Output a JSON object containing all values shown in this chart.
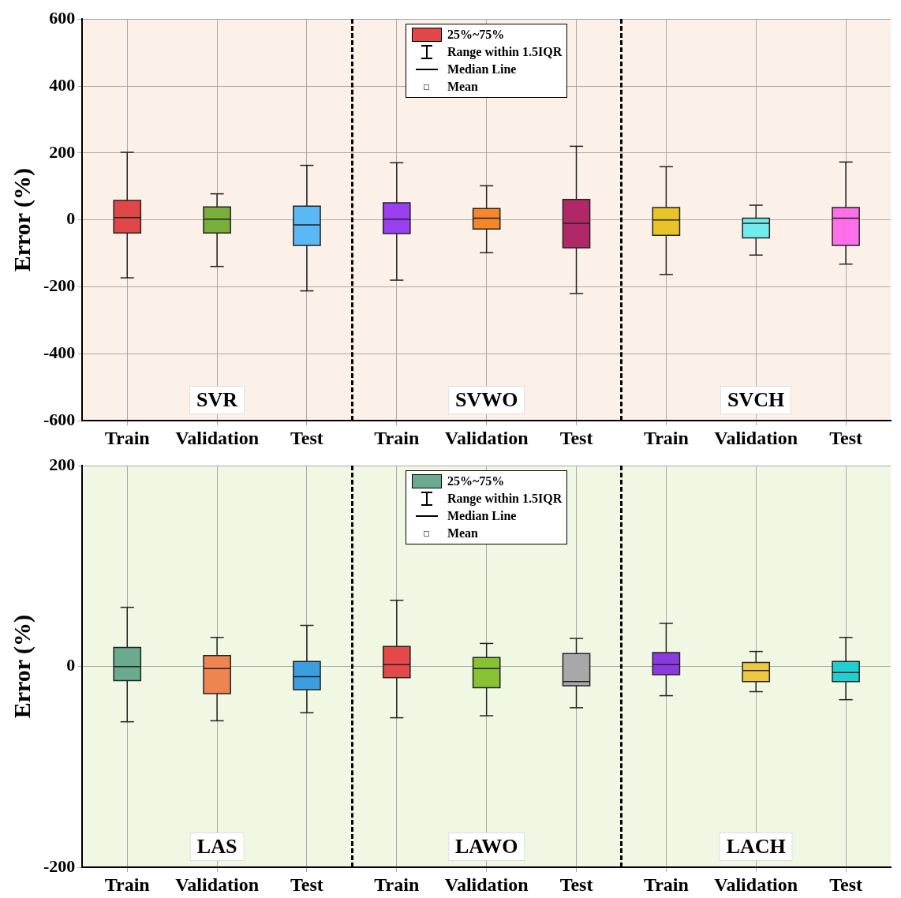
{
  "chart_data": [
    {
      "type": "box",
      "ylabel": "Error (%)",
      "categories": [
        "Train",
        "Validation",
        "Test",
        "Train",
        "Validation",
        "Test",
        "Train",
        "Validation",
        "Test"
      ],
      "ylim": [
        -600,
        600
      ],
      "yticks": [
        -600,
        -400,
        -200,
        0,
        200,
        400,
        600
      ],
      "grid": true,
      "legend": "top",
      "annotations": [
        "SVR",
        "SVWO",
        "SVCH",
        "Range within 1.5IQR",
        "Median Line",
        "Mean"
      ],
      "series": [
        {
          "name": "25%~75%",
          "colors": [
            "#e04848",
            "#7aae3c",
            "#5ab8f4",
            "#9a40f0",
            "#f5862a",
            "#b02868",
            "#e8c428",
            "#70ecec",
            "#ff70e8"
          ],
          "boxes": [
            {
              "low": -173,
              "q1": -39,
              "median": 7,
              "q3": 58,
              "high": 202,
              "mean": 5
            },
            {
              "low": -139,
              "q1": -39,
              "median": 2,
              "q3": 39,
              "high": 78,
              "mean": -2
            },
            {
              "low": -212,
              "q1": -76,
              "median": -15,
              "q3": 41,
              "high": 163,
              "mean": -20
            },
            {
              "low": -180,
              "q1": -41,
              "median": 2,
              "q3": 51,
              "high": 171,
              "mean": 2
            },
            {
              "low": -98,
              "q1": -27,
              "median": 5,
              "q3": 34,
              "high": 102,
              "mean": 5
            },
            {
              "low": -220,
              "q1": -83,
              "median": -10,
              "q3": 61,
              "high": 220,
              "mean": -10
            },
            {
              "low": -163,
              "q1": -46,
              "median": 0,
              "q3": 37,
              "high": 159,
              "mean": 5
            },
            {
              "low": -105,
              "q1": -54,
              "median": -10,
              "q3": 5,
              "high": 44,
              "mean": -29
            },
            {
              "low": -132,
              "q1": -76,
              "median": 5,
              "q3": 37,
              "high": 173,
              "mean": -2
            }
          ]
        }
      ]
    },
    {
      "type": "box",
      "ylabel": "Error (%)",
      "categories": [
        "Train",
        "Validation",
        "Test",
        "Train",
        "Validation",
        "Test",
        "Train",
        "Validation",
        "Test"
      ],
      "ylim": [
        -200,
        200
      ],
      "yticks": [
        -200,
        0,
        200
      ],
      "grid": true,
      "legend": "top",
      "annotations": [
        "LAS",
        "LAWO",
        "LACH",
        "Range within 1.5IQR",
        "Median Line",
        "Mean"
      ],
      "series": [
        {
          "name": "25%~75%",
          "colors": [
            "#6aaa8e",
            "#ee8450",
            "#3a9ee0",
            "#e44848",
            "#86c232",
            "#a8a8a8",
            "#8a3ae0",
            "#ecc840",
            "#20d0d0"
          ],
          "boxes": [
            {
              "low": -55,
              "q1": -14,
              "median": 0,
              "q3": 19,
              "high": 59,
              "mean": 2
            },
            {
              "low": -54,
              "q1": -27,
              "median": -2,
              "q3": 11,
              "high": 29,
              "mean": -7
            },
            {
              "low": -46,
              "q1": -23,
              "median": -10,
              "q3": 5,
              "high": 41,
              "mean": -7
            },
            {
              "low": -51,
              "q1": -11,
              "median": 2,
              "q3": 20,
              "high": 66,
              "mean": 3
            },
            {
              "low": -49,
              "q1": -21,
              "median": -2,
              "q3": 9,
              "high": 23,
              "mean": -4
            },
            {
              "low": -41,
              "q1": -19,
              "median": -15,
              "q3": 13,
              "high": 28,
              "mean": -7
            },
            {
              "low": -29,
              "q1": -8,
              "median": 2,
              "q3": 14,
              "high": 43,
              "mean": 2
            },
            {
              "low": -25,
              "q1": -15,
              "median": -4,
              "q3": 4,
              "high": 15,
              "mean": -4
            },
            {
              "low": -33,
              "q1": -15,
              "median": -6,
              "q3": 5,
              "high": 29,
              "mean": -4
            }
          ]
        }
      ]
    }
  ]
}
